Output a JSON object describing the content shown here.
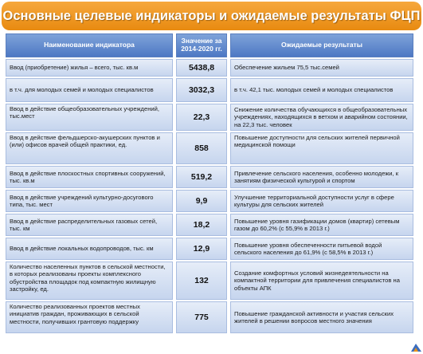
{
  "title": "Основные целевые индикаторы и ожидаемые результаты ФЦП",
  "headers": {
    "indicator": "Наименование индикатора",
    "value": "Значение за 2014-2020 гг.",
    "results": "Ожидаемые результаты"
  },
  "rows": [
    {
      "indicator": "Ввод (приобретение) жилья – всего, тыс. кв.м",
      "value": "5438,8",
      "result": "Обеспечение жильем 75,5 тыс.семей"
    },
    {
      "indicator": "в т.ч. для молодых семей и молодых специалистов",
      "value": "3032,3",
      "result": "в т.ч. 42,1 тыс. молодых семей и молодых специалистов"
    },
    {
      "indicator": "Ввод в действие общеобразовательных учреждений, тыс.мест",
      "value": "22,3",
      "result": "Снижение количества обучающихся в общеобразовательных учреждениях, находящихся в ветхом и аварийном состоянии, на 22,3 тыс. человек"
    },
    {
      "indicator": "Ввод в действие фельдшерско-акушерских пунктов и (или) офисов врачей общей практики, ед.",
      "value": "858",
      "result": "Повышение доступности для сельских жителей первичной медицинской помощи"
    },
    {
      "indicator": "Ввод в действие плоскостных спортивных сооружений, тыс. кв.м",
      "value": "519,2",
      "result": "Привлечение сельского населения, особенно молодежи, к занятиям физической культурой и спортом"
    },
    {
      "indicator": "Ввод в действие учреждений культурно-досугового типа, тыс. мест",
      "value": "9,9",
      "result": "Улучшение территориальной доступности услуг в сфере культуры для сельских жителей"
    },
    {
      "indicator": "Ввод в действие распределительных газовых сетей, тыс. км",
      "value": "18,2",
      "result": "Повышение уровня газификации домов (квартир) сетевым газом до 60,2% (с 55,9% в 2013 г.)"
    },
    {
      "indicator": "Ввод в действие локальных водопроводов, тыс. км",
      "value": "12,9",
      "result": "Повышение уровня обеспеченности питьевой водой сельского населения до 61,9% (с 58,5% в 2013 г.)"
    },
    {
      "indicator": "Количество населенных пунктов в сельской местности, в которых реализованы проекты комплексного обустройства площадок под компактную жилищную застройку, ед.",
      "value": "132",
      "result": "Создание комфортных условий жизнедеятельности на компактной территории для привлечения специалистов на объекты АПК"
    },
    {
      "indicator": "Количество реализованных проектов местных инициатив граждан, проживающих в сельской местности, получивших грантовую поддержку",
      "value": "775",
      "result": "Повышение гражданской активности и участия сельских жителей в решении вопросов местного значения"
    }
  ],
  "colors": {
    "title_orange": "#ee9424",
    "header_blue": "#5a81c8",
    "cell_blue": "#d6e1f3"
  }
}
